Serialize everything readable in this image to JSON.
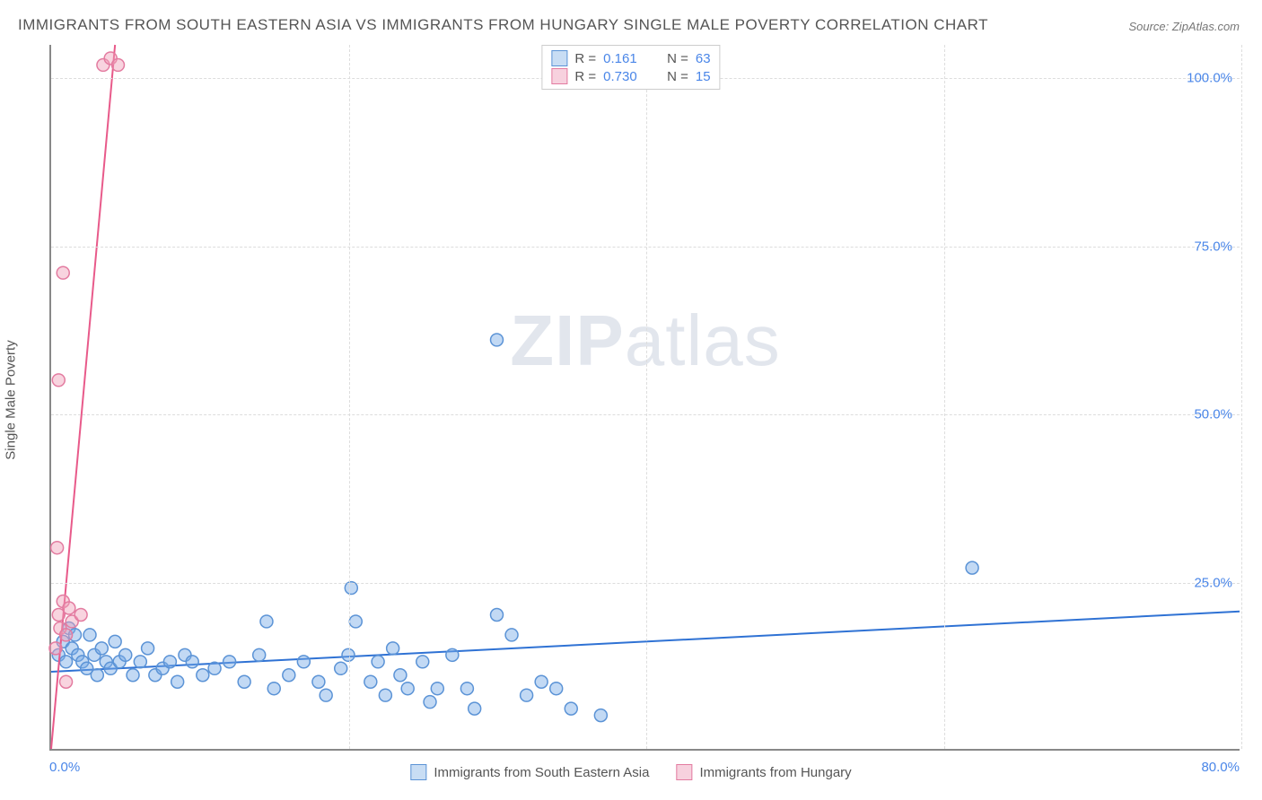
{
  "title": "IMMIGRANTS FROM SOUTH EASTERN ASIA VS IMMIGRANTS FROM HUNGARY SINGLE MALE POVERTY CORRELATION CHART",
  "source": "Source: ZipAtlas.com",
  "y_axis_label": "Single Male Poverty",
  "watermark_bold": "ZIP",
  "watermark_light": "atlas",
  "chart": {
    "type": "scatter",
    "xlim": [
      0,
      80
    ],
    "ylim": [
      0,
      105
    ],
    "x_ticks": [
      0,
      20,
      40,
      60,
      80
    ],
    "x_tick_labels": [
      "0.0%",
      "",
      "",
      "",
      "80.0%"
    ],
    "y_ticks": [
      25,
      50,
      75,
      100
    ],
    "y_tick_labels": [
      "25.0%",
      "50.0%",
      "75.0%",
      "100.0%"
    ],
    "background_color": "#ffffff",
    "grid_color": "#dddddd",
    "axis_color": "#888888",
    "tick_label_color": "#4a86e8",
    "marker_radius": 7,
    "marker_stroke_width": 1.5,
    "trend_line_width": 2
  },
  "series": [
    {
      "name": "Immigrants from South Eastern Asia",
      "key": "sea",
      "fill_color": "rgba(120,170,230,0.45)",
      "stroke_color": "#5b93d6",
      "swatch_fill": "#c8ddf4",
      "swatch_border": "#5b93d6",
      "R": "0.161",
      "N": "63",
      "trend": {
        "x1": 0,
        "y1": 11.5,
        "x2": 80,
        "y2": 20.5,
        "color": "#2f72d4"
      },
      "points": [
        [
          0.5,
          14
        ],
        [
          0.8,
          16
        ],
        [
          1.0,
          13
        ],
        [
          1.2,
          18
        ],
        [
          1.4,
          15
        ],
        [
          1.6,
          17
        ],
        [
          1.8,
          14
        ],
        [
          2.1,
          13
        ],
        [
          2.4,
          12
        ],
        [
          2.6,
          17
        ],
        [
          2.9,
          14
        ],
        [
          3.1,
          11
        ],
        [
          3.4,
          15
        ],
        [
          3.7,
          13
        ],
        [
          4.0,
          12
        ],
        [
          4.3,
          16
        ],
        [
          4.6,
          13
        ],
        [
          5.0,
          14
        ],
        [
          5.5,
          11
        ],
        [
          6.0,
          13
        ],
        [
          6.5,
          15
        ],
        [
          7.0,
          11
        ],
        [
          7.5,
          12
        ],
        [
          8.0,
          13
        ],
        [
          8.5,
          10
        ],
        [
          9.0,
          14
        ],
        [
          9.5,
          13
        ],
        [
          10.2,
          11
        ],
        [
          11.0,
          12
        ],
        [
          12.0,
          13
        ],
        [
          13.0,
          10
        ],
        [
          14.0,
          14
        ],
        [
          14.5,
          19
        ],
        [
          15.0,
          9
        ],
        [
          16.0,
          11
        ],
        [
          17.0,
          13
        ],
        [
          18.0,
          10
        ],
        [
          18.5,
          8
        ],
        [
          19.5,
          12
        ],
        [
          20.0,
          14
        ],
        [
          20.2,
          24
        ],
        [
          20.5,
          19
        ],
        [
          21.5,
          10
        ],
        [
          22.0,
          13
        ],
        [
          22.5,
          8
        ],
        [
          23.0,
          15
        ],
        [
          23.5,
          11
        ],
        [
          24.0,
          9
        ],
        [
          25.0,
          13
        ],
        [
          25.5,
          7
        ],
        [
          26.0,
          9
        ],
        [
          27.0,
          14
        ],
        [
          28.0,
          9
        ],
        [
          28.5,
          6
        ],
        [
          30.0,
          20
        ],
        [
          30.0,
          61
        ],
        [
          31.0,
          17
        ],
        [
          32.0,
          8
        ],
        [
          33.0,
          10
        ],
        [
          34.0,
          9
        ],
        [
          35.0,
          6
        ],
        [
          37.0,
          5
        ],
        [
          62.0,
          27
        ]
      ]
    },
    {
      "name": "Immigrants from Hungary",
      "key": "hun",
      "fill_color": "rgba(240,160,185,0.45)",
      "stroke_color": "#e37ba0",
      "swatch_fill": "#f7d1de",
      "swatch_border": "#e37ba0",
      "R": "0.730",
      "N": "15",
      "trend": {
        "x1": 0,
        "y1": 0,
        "x2": 4.3,
        "y2": 105,
        "color": "#e85a8a"
      },
      "points": [
        [
          0.3,
          15
        ],
        [
          0.5,
          20
        ],
        [
          0.6,
          18
        ],
        [
          0.8,
          22
        ],
        [
          1.0,
          17
        ],
        [
          1.2,
          21
        ],
        [
          1.4,
          19
        ],
        [
          0.4,
          30
        ],
        [
          1.0,
          10
        ],
        [
          2.0,
          20
        ],
        [
          0.5,
          55
        ],
        [
          0.8,
          71
        ],
        [
          3.5,
          102
        ],
        [
          4.0,
          103
        ],
        [
          4.5,
          102
        ]
      ]
    }
  ],
  "top_legend": {
    "r_prefix": "R =",
    "n_prefix": "N ="
  }
}
